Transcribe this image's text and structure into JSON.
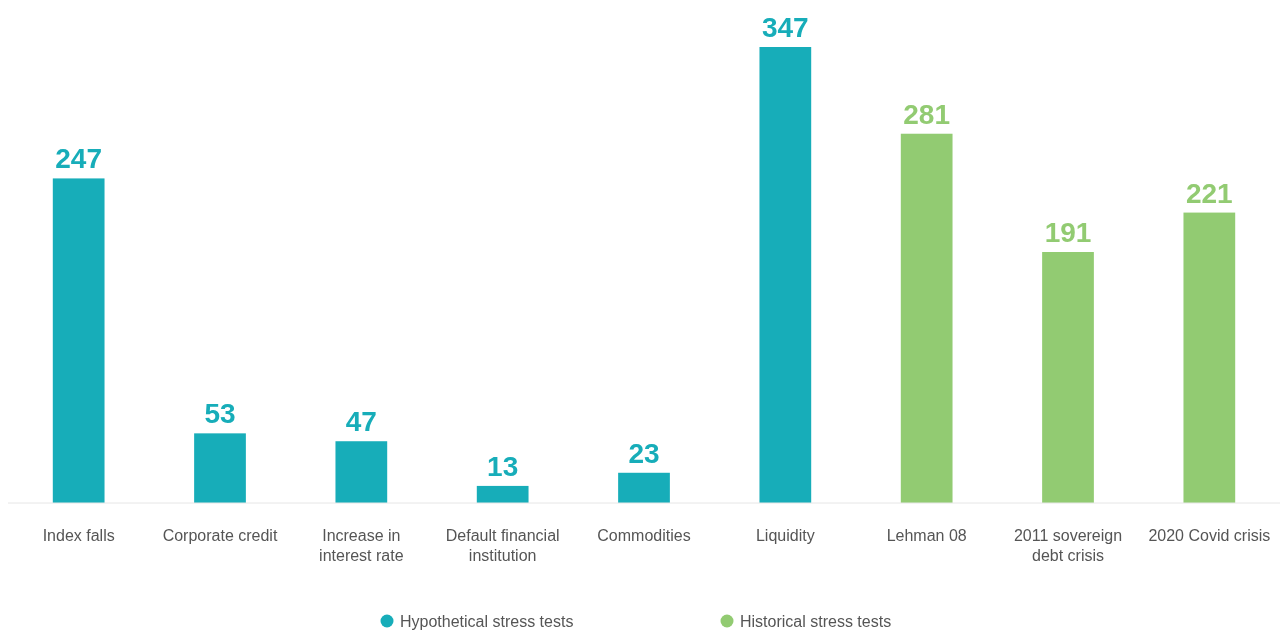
{
  "chart_data": {
    "type": "bar",
    "stacked": true,
    "data_labels": true,
    "legend": "bottom",
    "categories": [
      "Index falls",
      "Corporate credit",
      "Increase in interest rate",
      "Default financial institution",
      "Commodities",
      "Liquidity",
      "Lehman 08",
      "2011 sovereign debt crisis",
      "2020 Covid crisis"
    ],
    "series": [
      {
        "name": "Hypothetical stress tests",
        "color": "#17adb9",
        "values": [
          247,
          53,
          47,
          13,
          23,
          347,
          null,
          null,
          null
        ]
      },
      {
        "name": "Historical stress tests",
        "color": "#92cb72",
        "values": [
          null,
          null,
          null,
          null,
          null,
          null,
          281,
          191,
          221
        ]
      }
    ]
  }
}
